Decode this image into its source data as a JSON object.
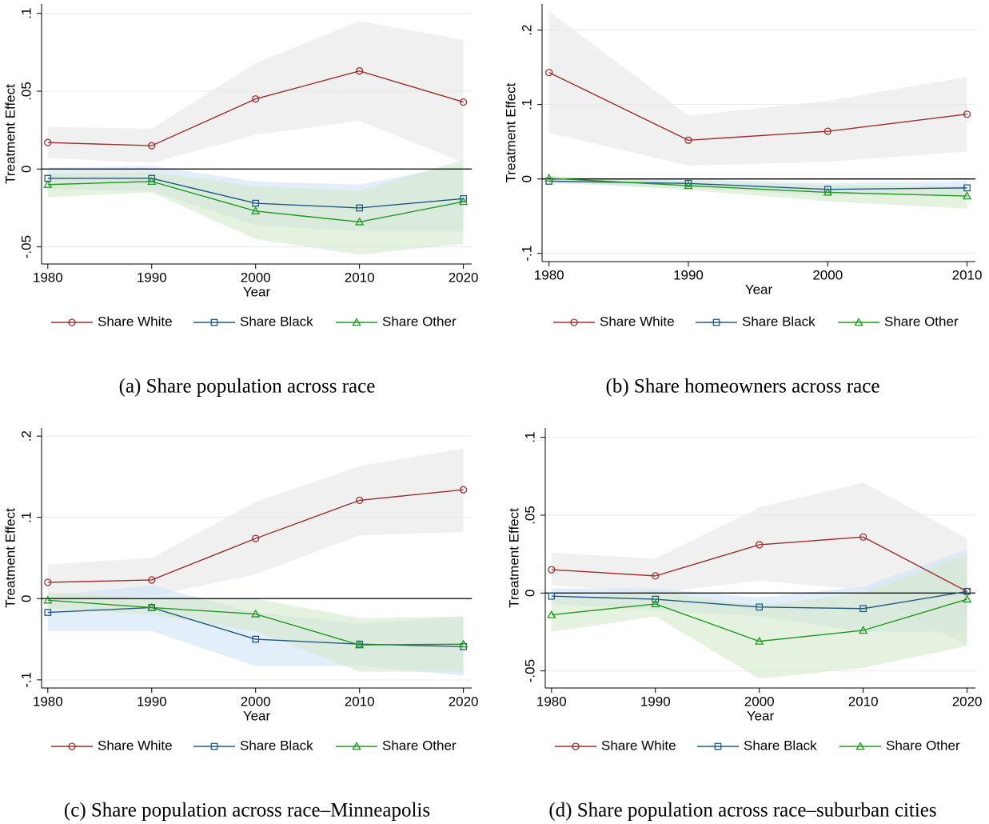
{
  "chart_data": [
    {
      "type": "line",
      "caption": "(a) Share population across race",
      "ylabel": "Treatment Effect",
      "xlabel": "Year",
      "grid": true,
      "hline": 0,
      "x": [
        1980,
        1990,
        2000,
        2010,
        2020
      ],
      "xlim": [
        1979.4,
        2020.8
      ],
      "xticks": [
        1980,
        1990,
        2000,
        2010,
        2020
      ],
      "ylim": [
        -0.061,
        0.106
      ],
      "yticks": [
        {
          "value": -0.05,
          "label": "-.05"
        },
        0,
        {
          "value": 0.05,
          "label": ".05"
        },
        {
          "value": 0.1,
          "label": ".1"
        }
      ],
      "series": [
        {
          "name": "Share White",
          "color": "#9e2f2f",
          "band_color": "#e6e6e6",
          "marker": "circle",
          "values": [
            0.017,
            0.015,
            0.045,
            0.063,
            0.043
          ],
          "upper": [
            0.027,
            0.026,
            0.068,
            0.095,
            0.083
          ],
          "lower": [
            0.007,
            0.004,
            0.022,
            0.031,
            0.004
          ]
        },
        {
          "name": "Share Black",
          "color": "#1f5a85",
          "band_color": "#cfe2f7",
          "marker": "square",
          "values": [
            -0.006,
            -0.006,
            -0.022,
            -0.025,
            -0.019
          ],
          "upper": [
            0.001,
            0.002,
            -0.008,
            -0.01,
            0.003
          ],
          "lower": [
            -0.013,
            -0.014,
            -0.036,
            -0.04,
            -0.04
          ]
        },
        {
          "name": "Share Other",
          "color": "#1f9a1f",
          "band_color": "#d5e9cc",
          "marker": "triangle",
          "values": [
            -0.01,
            -0.008,
            -0.027,
            -0.034,
            -0.021
          ],
          "upper": [
            -0.003,
            -0.002,
            -0.011,
            -0.014,
            0.006
          ],
          "lower": [
            -0.018,
            -0.015,
            -0.045,
            -0.055,
            -0.048
          ]
        }
      ]
    },
    {
      "type": "line",
      "caption": "(b) Share homeowners across race",
      "ylabel": "Treatment Effect",
      "xlabel": "Year",
      "grid": true,
      "hline": 0,
      "x": [
        1980,
        1990,
        2000,
        2010
      ],
      "xlim": [
        1979.5,
        2010.6
      ],
      "xticks": [
        1980,
        1990,
        2000,
        2010
      ],
      "ylim": [
        -0.111,
        0.235
      ],
      "yticks": [
        {
          "value": -0.1,
          "label": "-.1"
        },
        0,
        {
          "value": 0.1,
          "label": ".1"
        },
        {
          "value": 0.2,
          "label": ".2"
        }
      ],
      "series": [
        {
          "name": "Share White",
          "color": "#9e2f2f",
          "band_color": "#e6e6e6",
          "marker": "circle",
          "values": [
            0.143,
            0.052,
            0.064,
            0.087
          ],
          "upper": [
            0.225,
            0.085,
            0.105,
            0.137
          ],
          "lower": [
            0.062,
            0.018,
            0.023,
            0.037
          ]
        },
        {
          "name": "Share Black",
          "color": "#1f5a85",
          "band_color": "#cfe2f7",
          "marker": "square",
          "values": [
            -0.003,
            -0.006,
            -0.014,
            -0.012
          ],
          "upper": [
            0.001,
            0.0,
            -0.006,
            -0.003
          ],
          "lower": [
            -0.006,
            -0.012,
            -0.022,
            -0.021
          ]
        },
        {
          "name": "Share Other",
          "color": "#1f9a1f",
          "band_color": "#d5e9cc",
          "marker": "triangle",
          "values": [
            0.001,
            -0.009,
            -0.018,
            -0.023
          ],
          "upper": [
            0.004,
            -0.003,
            -0.008,
            -0.01
          ],
          "lower": [
            -0.003,
            -0.015,
            -0.03,
            -0.04
          ]
        }
      ]
    },
    {
      "type": "line",
      "caption": "(c) Share population across race–Minneapolis",
      "ylabel": "Treatment Effect",
      "xlabel": "Year",
      "grid": true,
      "hline": 0,
      "x": [
        1980,
        1990,
        2000,
        2010,
        2020
      ],
      "xlim": [
        1979.4,
        2020.8
      ],
      "xticks": [
        1980,
        1990,
        2000,
        2010,
        2020
      ],
      "ylim": [
        -0.11,
        0.21
      ],
      "yticks": [
        {
          "value": -0.1,
          "label": "-.1"
        },
        0,
        {
          "value": 0.1,
          "label": ".1"
        },
        {
          "value": 0.2,
          "label": ".2"
        }
      ],
      "series": [
        {
          "name": "Share White",
          "color": "#9e2f2f",
          "band_color": "#e6e6e6",
          "marker": "circle",
          "values": [
            0.02,
            0.023,
            0.074,
            0.121,
            0.134
          ],
          "upper": [
            0.042,
            0.05,
            0.119,
            0.163,
            0.185
          ],
          "lower": [
            0.0,
            0.003,
            0.03,
            0.078,
            0.082
          ]
        },
        {
          "name": "Share Black",
          "color": "#1f5a85",
          "band_color": "#cfe2f7",
          "marker": "square",
          "values": [
            -0.017,
            -0.011,
            -0.05,
            -0.056,
            -0.059
          ],
          "upper": [
            0.004,
            0.016,
            -0.017,
            -0.031,
            -0.022
          ],
          "lower": [
            -0.04,
            -0.04,
            -0.083,
            -0.083,
            -0.095
          ]
        },
        {
          "name": "Share Other",
          "color": "#1f9a1f",
          "band_color": "#d5e9cc",
          "marker": "triangle",
          "values": [
            -0.002,
            -0.011,
            -0.019,
            -0.057,
            -0.056
          ],
          "upper": [
            0.008,
            0.0,
            0.0,
            -0.024,
            -0.022
          ],
          "lower": [
            -0.012,
            -0.02,
            -0.04,
            -0.09,
            -0.09
          ]
        }
      ]
    },
    {
      "type": "line",
      "caption": "(d) Share population across race–suburban cities",
      "ylabel": "Treatment Effect",
      "xlabel": "Year",
      "grid": true,
      "hline": 0,
      "x": [
        1980,
        1990,
        2000,
        2010,
        2020
      ],
      "xlim": [
        1979.4,
        2020.8
      ],
      "xticks": [
        1980,
        1990,
        2000,
        2010,
        2020
      ],
      "ylim": [
        -0.061,
        0.106
      ],
      "yticks": [
        {
          "value": -0.05,
          "label": "-.05"
        },
        0,
        {
          "value": 0.05,
          "label": ".05"
        },
        {
          "value": 0.1,
          "label": ".1"
        }
      ],
      "series": [
        {
          "name": "Share White",
          "color": "#9e2f2f",
          "band_color": "#e6e6e6",
          "marker": "circle",
          "values": [
            0.015,
            0.011,
            0.031,
            0.036,
            0.001
          ],
          "upper": [
            0.026,
            0.022,
            0.055,
            0.071,
            0.035
          ],
          "lower": [
            0.005,
            0.0,
            0.008,
            0.002,
            -0.034
          ]
        },
        {
          "name": "Share Black",
          "color": "#1f5a85",
          "band_color": "#cfe2f7",
          "marker": "square",
          "values": [
            -0.002,
            -0.004,
            -0.009,
            -0.01,
            0.001
          ],
          "upper": [
            0.003,
            0.003,
            -0.003,
            0.004,
            0.028
          ],
          "lower": [
            -0.007,
            -0.011,
            -0.015,
            -0.025,
            -0.025
          ]
        },
        {
          "name": "Share Other",
          "color": "#1f9a1f",
          "band_color": "#d5e9cc",
          "marker": "triangle",
          "values": [
            -0.014,
            -0.007,
            -0.031,
            -0.024,
            -0.004
          ],
          "upper": [
            -0.004,
            0.001,
            -0.008,
            0.0,
            0.025
          ],
          "lower": [
            -0.025,
            -0.015,
            -0.055,
            -0.048,
            -0.034
          ]
        }
      ]
    }
  ]
}
